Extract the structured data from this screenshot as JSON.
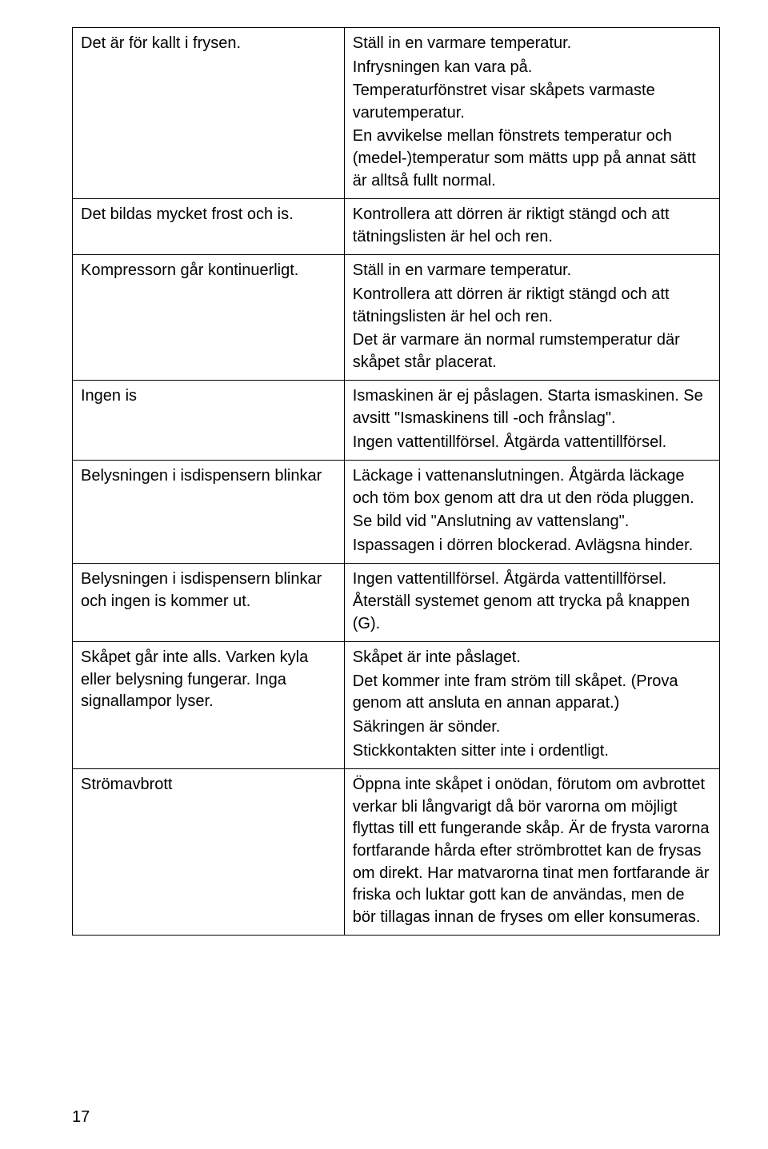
{
  "page_number": "17",
  "rows": [
    {
      "left": [
        "Det är för kallt i frysen."
      ],
      "right": [
        "Ställ in en varmare temperatur.",
        "Infrysningen kan vara på.",
        "Temperaturfönstret visar skåpets varmaste varutemperatur.",
        "En avvikelse mellan fönstrets temperatur och (medel-)temperatur som mätts upp på annat sätt är alltså fullt normal."
      ]
    },
    {
      "left": [
        "Det bildas mycket frost och is."
      ],
      "right": [
        "Kontrollera att dörren är riktigt stängd och att tätningslisten är hel och ren."
      ]
    },
    {
      "left": [
        "Kompressorn går kontinuerligt."
      ],
      "right": [
        "Ställ in en varmare temperatur.",
        "Kontrollera att dörren är riktigt stängd och att tätningslisten är hel och ren.",
        "Det är varmare än normal rumstemperatur där skåpet står placerat."
      ]
    },
    {
      "left": [
        "Ingen is"
      ],
      "right": [
        "Ismaskinen är ej påslagen. Starta ismaskinen. Se avsitt \"Ismaskinens till -och frånslag\".",
        "Ingen vattentillförsel. Åtgärda vattentillförsel."
      ]
    },
    {
      "left": [
        "Belysningen i isdispensern blinkar"
      ],
      "right": [
        "Läckage i vattenanslutningen. Åtgärda läckage och töm box genom att dra ut den röda pluggen.",
        "Se bild vid \"Anslutning av vattenslang\".",
        "Ispassagen i dörren blockerad. Avlägsna hinder."
      ]
    },
    {
      "left": [
        "Belysningen i isdispensern blinkar och ingen is kommer ut."
      ],
      "right": [
        "Ingen vattentillförsel. Åtgärda vattentillförsel. Återställ systemet genom att trycka på knappen (G)."
      ]
    },
    {
      "left": [
        "Skåpet går inte alls. Varken kyla eller belysning fungerar. Inga signallampor lyser."
      ],
      "right": [
        "Skåpet är inte påslaget.",
        "Det kommer inte fram ström till skåpet. (Prova genom att ansluta en annan apparat.)",
        "Säkringen är sönder.",
        "Stickkontakten sitter inte i ordentligt."
      ]
    },
    {
      "left": [
        "Strömavbrott"
      ],
      "right": [
        "Öppna inte skåpet i onödan, förutom om avbrottet verkar bli långvarigt då bör varorna om möjligt flyttas till ett fungerande skåp. Är de frysta varorna fortfarande hårda efter strömbrottet kan de frysas om direkt. Har matvarorna tinat men fortfarande är friska och luktar gott kan de användas, men de bör tillagas innan de fryses om eller konsumeras."
      ]
    }
  ]
}
